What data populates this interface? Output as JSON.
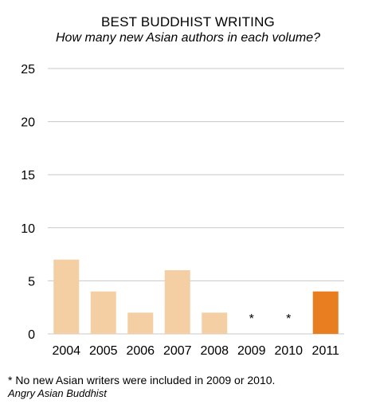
{
  "header": {
    "title": "BEST BUDDHIST WRITING",
    "subtitle": "How many new Asian authors in each volume?"
  },
  "chart_data": {
    "type": "bar",
    "title": "BEST BUDDHIST WRITING",
    "subtitle": "How many new Asian authors in each volume?",
    "categories": [
      "2004",
      "2005",
      "2006",
      "2007",
      "2008",
      "2009",
      "2010",
      "2011"
    ],
    "values": [
      7,
      4,
      2,
      6,
      2,
      0,
      0,
      4
    ],
    "bar_markers": [
      "",
      "",
      "",
      "",
      "",
      "*",
      "*",
      ""
    ],
    "highlight_index": 7,
    "ylim": [
      0,
      25
    ],
    "yticks": [
      0,
      5,
      10,
      15,
      20,
      25
    ],
    "grid": true,
    "colors": {
      "bar": "#f5cfa4",
      "highlight": "#e87e1f",
      "grid": "#c8c8c8"
    }
  },
  "footnote": "* No new Asian writers were included in 2009 or 2010.",
  "source": "Angry Asian Buddhist"
}
